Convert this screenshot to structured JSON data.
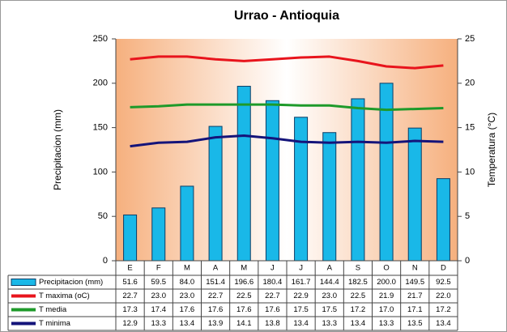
{
  "chart_data": {
    "type": "bar",
    "title": "Urrao - Antioquia",
    "y_label": "Precipitacion (mm)",
    "y2_label": "Temperatura (°C)",
    "categories": [
      "E",
      "F",
      "M",
      "A",
      "M",
      "J",
      "J",
      "A",
      "S",
      "O",
      "N",
      "D"
    ],
    "ylim": [
      0,
      250
    ],
    "yticks": [
      0,
      50,
      100,
      150,
      200,
      250
    ],
    "y2lim": [
      0,
      25
    ],
    "y2ticks": [
      0,
      5,
      10,
      15,
      20,
      25
    ],
    "grid": false,
    "series": [
      {
        "name": "Precipitacion (mm)",
        "type": "bar",
        "color": "#19b8e8",
        "values": [
          51.6,
          59.5,
          84.0,
          151.4,
          196.6,
          180.4,
          161.7,
          144.4,
          182.5,
          200.0,
          149.5,
          92.5
        ],
        "value_labels": [
          "51.6",
          "59.5",
          "84.0",
          "151.4",
          "196.6",
          "180.4",
          "161.7",
          "144.4",
          "182.5",
          "200.0",
          "149.5",
          "92.5"
        ]
      },
      {
        "name": "T maxima (oC)",
        "type": "line",
        "axis": "y2",
        "color": "#e8141c",
        "values": [
          22.7,
          23.0,
          23.0,
          22.7,
          22.5,
          22.7,
          22.9,
          23.0,
          22.5,
          21.9,
          21.7,
          22.0
        ],
        "value_labels": [
          "22.7",
          "23.0",
          "23.0",
          "22.7",
          "22.5",
          "22.7",
          "22.9",
          "23.0",
          "22.5",
          "21.9",
          "21.7",
          "22.0"
        ]
      },
      {
        "name": "T media",
        "type": "line",
        "axis": "y2",
        "color": "#1e9a2a",
        "values": [
          17.3,
          17.4,
          17.6,
          17.6,
          17.6,
          17.6,
          17.5,
          17.5,
          17.2,
          17.0,
          17.1,
          17.2
        ],
        "value_labels": [
          "17.3",
          "17.4",
          "17.6",
          "17.6",
          "17.6",
          "17.6",
          "17.5",
          "17.5",
          "17.2",
          "17.0",
          "17.1",
          "17.2"
        ]
      },
      {
        "name": "T minima",
        "type": "line",
        "axis": "y2",
        "color": "#14147a",
        "values": [
          12.9,
          13.3,
          13.4,
          13.9,
          14.1,
          13.8,
          13.4,
          13.3,
          13.4,
          13.3,
          13.5,
          13.4
        ],
        "value_labels": [
          "12.9",
          "13.3",
          "13.4",
          "13.9",
          "14.1",
          "13.8",
          "13.4",
          "13.3",
          "13.4",
          "13.3",
          "13.5",
          "13.4"
        ]
      }
    ]
  }
}
